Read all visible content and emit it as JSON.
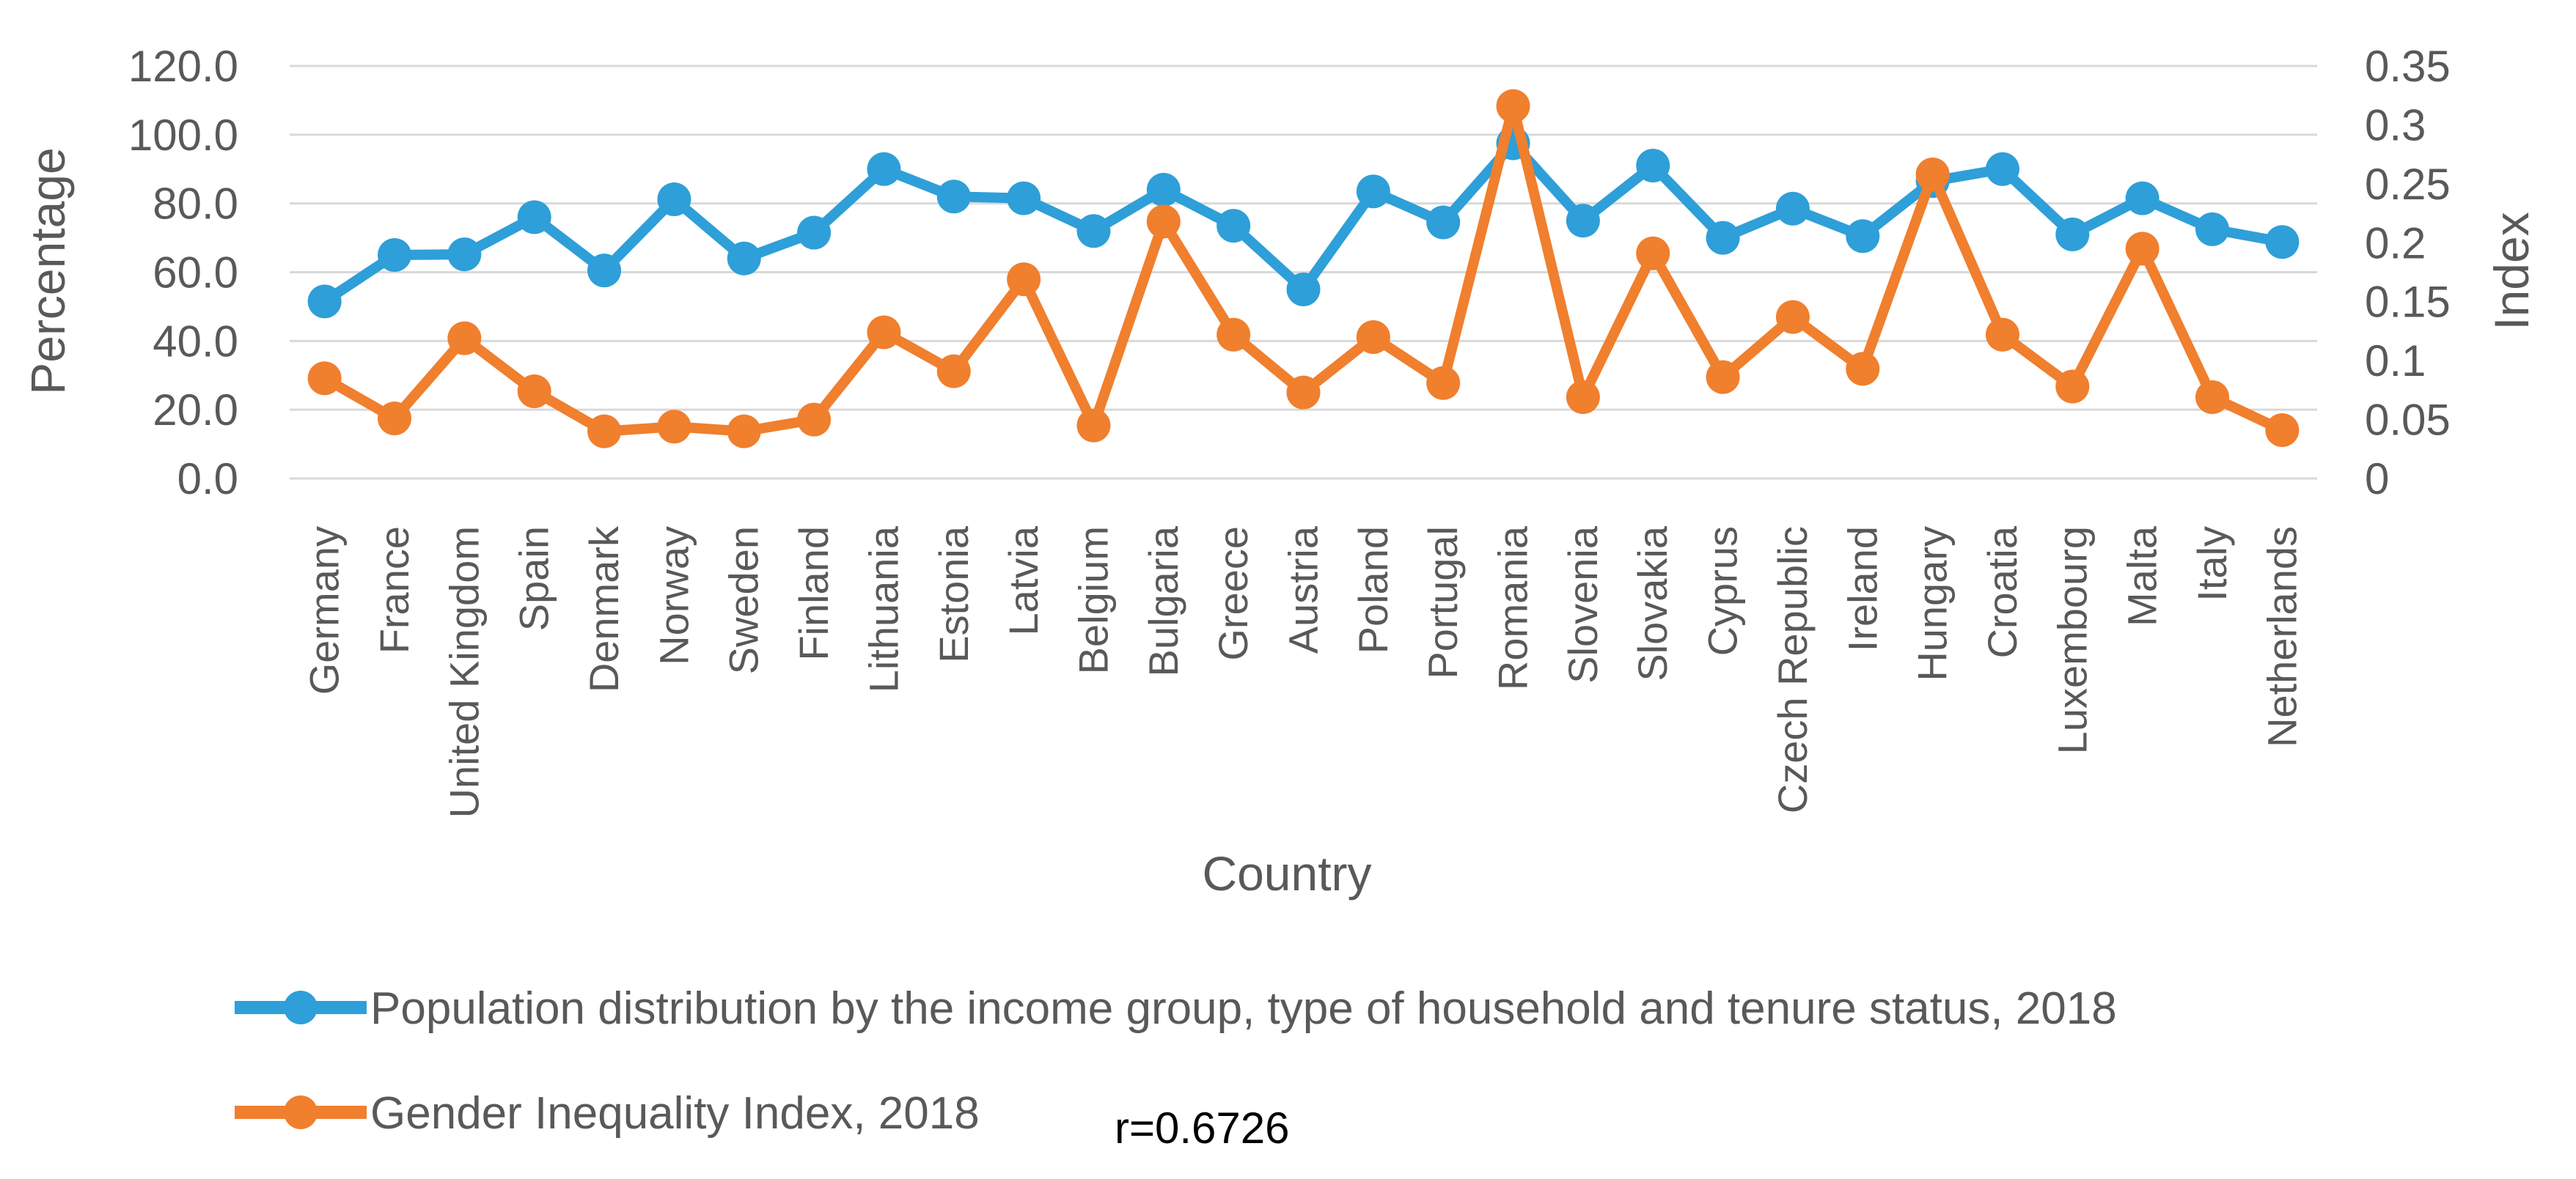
{
  "chart_data": {
    "type": "line",
    "title": "",
    "xlabel": "Country",
    "ylabel": "Percentage",
    "y2label": "Index",
    "ylim": [
      0,
      120
    ],
    "y_ticks": [
      "0.0",
      "20.0",
      "40.0",
      "60.0",
      "80.0",
      "100.0",
      "120.0"
    ],
    "y2lim": [
      0,
      0.35
    ],
    "y2_ticks": [
      "0",
      "0.05",
      "0.1",
      "0.15",
      "0.2",
      "0.25",
      "0.3",
      "0.35"
    ],
    "grid": true,
    "legend_position": "bottom",
    "categories": [
      "Germany",
      "France",
      "United Kingdom",
      "Spain",
      "Denmark",
      "Norway",
      "Sweden",
      "Finland",
      "Lithuania",
      "Estonia",
      "Latvia",
      "Belgium",
      "Bulgaria",
      "Greece",
      "Austria",
      "Poland",
      "Portugal",
      "Romania",
      "Slovenia",
      "Slovakia",
      "Cyprus",
      "Czech Republic",
      "Ireland",
      "Hungary",
      "Croatia",
      "Luxembourg",
      "Malta",
      "Italy",
      "Netherlands"
    ],
    "series": [
      {
        "name": "Population distribution by the income group, type of household and tenure status, 2018",
        "axis": "left",
        "color": "#2E9FD8",
        "values": [
          51.5,
          65.0,
          65.2,
          76.0,
          60.5,
          81.2,
          64.0,
          71.5,
          90.0,
          82.0,
          81.5,
          72.0,
          84.0,
          73.5,
          55.0,
          83.5,
          74.5,
          97.5,
          75.0,
          91.0,
          70.0,
          78.5,
          70.5,
          86.5,
          90.0,
          71.0,
          81.5,
          72.5,
          68.8
        ]
      },
      {
        "name": "Gender Inequality Index, 2018",
        "axis": "right",
        "color": "#F07F2E",
        "values": [
          0.085,
          0.051,
          0.119,
          0.074,
          0.04,
          0.044,
          0.04,
          0.05,
          0.124,
          0.091,
          0.169,
          0.045,
          0.218,
          0.122,
          0.073,
          0.12,
          0.081,
          0.316,
          0.069,
          0.191,
          0.086,
          0.137,
          0.093,
          0.258,
          0.122,
          0.078,
          0.195,
          0.069,
          0.041
        ]
      }
    ],
    "annotation": "r=0.6726"
  }
}
